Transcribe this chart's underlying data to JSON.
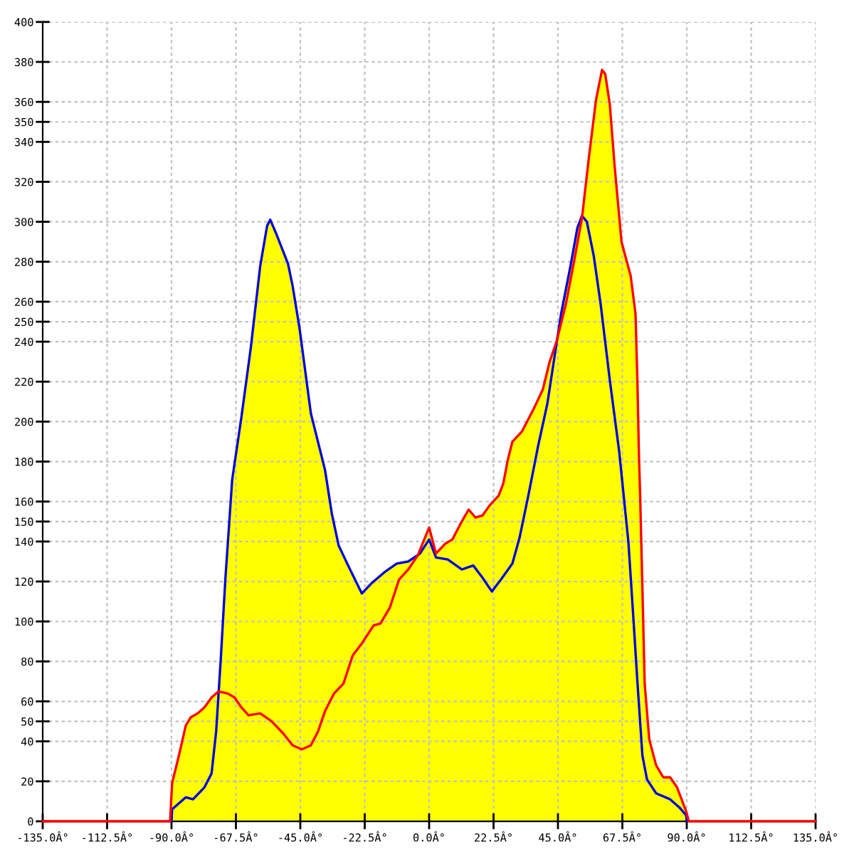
{
  "chart_data": {
    "type": "area",
    "xlim": [
      -135,
      135
    ],
    "ylim": [
      0,
      400
    ],
    "grid": true,
    "line_style": "solid",
    "xticks": [
      {
        "value": -135,
        "label": "-135.0Â°"
      },
      {
        "value": -112.5,
        "label": "-112.5Â°"
      },
      {
        "value": -90,
        "label": "-90.0Â°"
      },
      {
        "value": -67.5,
        "label": "-67.5Â°"
      },
      {
        "value": -45,
        "label": "-45.0Â°"
      },
      {
        "value": -22.5,
        "label": "-22.5Â°"
      },
      {
        "value": 0,
        "label": "0.0Â°"
      },
      {
        "value": 22.5,
        "label": "22.5Â°"
      },
      {
        "value": 45,
        "label": "45.0Â°"
      },
      {
        "value": 67.5,
        "label": "67.5Â°"
      },
      {
        "value": 90,
        "label": "90.0Â°"
      },
      {
        "value": 112.5,
        "label": "112.5Â°"
      },
      {
        "value": 135,
        "label": "135.0Â°"
      }
    ],
    "yticks": [
      0,
      20,
      40,
      50,
      60,
      80,
      100,
      120,
      140,
      150,
      160,
      180,
      200,
      220,
      240,
      250,
      260,
      280,
      300,
      320,
      340,
      350,
      360,
      380,
      400
    ],
    "series": [
      {
        "color": "#ffff00",
        "x": [
          -90.5,
          -89.8,
          -87.4,
          -85,
          -83.3,
          -80.9,
          -78.5,
          -76,
          -73.6,
          -72.8,
          -71.2,
          -68.8,
          -65.6,
          -62.3,
          -59,
          -56.6,
          -55.5,
          -53.4,
          -49.3,
          -47.7,
          -45.3,
          -41.3,
          -36.4,
          -34,
          -31.6,
          -28.3,
          -23.5,
          -20.2,
          -15.3,
          -11.3,
          -7.3,
          -4,
          0,
          2.4,
          5.7,
          8.1,
          11.4,
          13.8,
          16.2,
          18.6,
          21.1,
          24.3,
          25.9,
          27.5,
          29.1,
          32.4,
          36.4,
          39.7,
          42.1,
          44.5,
          44.8,
          46.1,
          49.4,
          51.8,
          53.4,
          55.8,
          58.3,
          60.4,
          61.5,
          63.1,
          64.8,
          67.2,
          70.4,
          72.1,
          72.8,
          73.3,
          73.7,
          74.5,
          75.3,
          76.9,
          79.3,
          81.8,
          84.2,
          86.6,
          89.8,
          90.7
        ],
        "values": [
          0,
          19,
          33,
          48,
          52,
          54,
          57,
          62,
          65,
          81,
          121,
          171,
          202,
          237,
          278,
          298,
          301,
          294,
          279,
          268,
          247,
          204,
          176,
          154,
          138,
          128,
          114,
          119,
          125,
          129,
          130,
          133,
          147,
          134,
          139,
          141,
          150,
          156,
          152,
          153,
          158,
          163,
          169,
          181,
          190,
          195,
          206,
          216,
          230,
          240,
          241,
          254,
          278,
          297,
          303,
          332,
          361,
          376,
          374,
          359,
          328,
          290,
          273,
          254,
          218,
          183,
          164,
          117,
          69,
          41,
          28,
          22,
          22,
          17,
          5,
          0
        ]
      },
      {
        "type": "line",
        "color": "#0000e0",
        "x": [
          -90,
          -89.8,
          -85,
          -82.5,
          -78.5,
          -76,
          -74.4,
          -72.8,
          -71.2,
          -68.8,
          -65.6,
          -62.3,
          -59,
          -56.6,
          -55.5,
          -53.4,
          -49.3,
          -47.7,
          -45.3,
          -41.3,
          -36.4,
          -34,
          -31.6,
          -28.3,
          -23.5,
          -20.2,
          -15.3,
          -11.3,
          -7.3,
          -3.2,
          0,
          2.4,
          6.5,
          11.4,
          15.4,
          18.6,
          21.9,
          25.1,
          29.1,
          31.6,
          34.8,
          38.1,
          41.3,
          46.1,
          49.4,
          51.8,
          53.4,
          55.1,
          57.5,
          59.9,
          63.1,
          66.4,
          69.6,
          71.2,
          72.8,
          74.5,
          76.1,
          79.3,
          84.2,
          87.4,
          89.8,
          90
        ],
        "values": [
          0,
          6,
          12,
          11,
          17,
          24,
          45,
          81,
          121,
          171,
          202,
          237,
          278,
          298,
          301,
          294,
          279,
          268,
          247,
          204,
          176,
          154,
          138,
          128,
          114,
          119,
          125,
          129,
          130,
          134,
          141,
          132,
          131,
          126,
          128,
          122,
          115,
          121,
          129,
          142,
          164,
          188,
          209,
          254,
          278,
          297,
          303,
          300,
          283,
          259,
          221,
          185,
          140,
          105,
          69,
          33,
          21,
          14,
          11,
          7,
          3,
          0
        ]
      },
      {
        "type": "line",
        "color": "#ff0000",
        "x": [
          -135,
          -90.5,
          -89.8,
          -87.4,
          -85,
          -83.3,
          -80.9,
          -78.5,
          -76,
          -73.6,
          -70.4,
          -68,
          -65.6,
          -63.1,
          -59,
          -55,
          -51,
          -47.7,
          -44.5,
          -41.3,
          -38.8,
          -36.4,
          -33.2,
          -29.9,
          -26.7,
          -23.5,
          -19.4,
          -17,
          -13.7,
          -10.5,
          -7.3,
          -4,
          0,
          2.4,
          5.7,
          8.1,
          11.4,
          13.8,
          16.2,
          18.6,
          21.1,
          24.3,
          25.9,
          27.5,
          29.1,
          32.4,
          36.4,
          39.7,
          42.1,
          44.5,
          47.8,
          51,
          53.4,
          55.8,
          58.3,
          60.4,
          61.5,
          63.1,
          64.8,
          67.2,
          70.4,
          72.1,
          72.8,
          73.3,
          73.7,
          74.5,
          75.3,
          76.9,
          79.3,
          81.8,
          84.2,
          86.6,
          89.8,
          90.7,
          135
        ],
        "values": [
          0,
          0,
          19,
          33,
          48,
          52,
          54,
          57,
          62,
          65,
          64,
          62,
          57,
          53,
          54,
          50,
          44,
          38,
          36,
          38,
          45,
          55,
          64,
          69,
          83,
          89,
          98,
          99,
          107,
          121,
          126,
          133,
          147,
          134,
          139,
          141,
          150,
          156,
          152,
          153,
          158,
          163,
          169,
          181,
          190,
          195,
          206,
          216,
          230,
          240,
          259,
          283,
          302,
          332,
          361,
          376,
          374,
          359,
          328,
          290,
          273,
          254,
          218,
          183,
          164,
          117,
          69,
          41,
          28,
          22,
          22,
          17,
          5,
          0,
          0
        ]
      }
    ]
  }
}
